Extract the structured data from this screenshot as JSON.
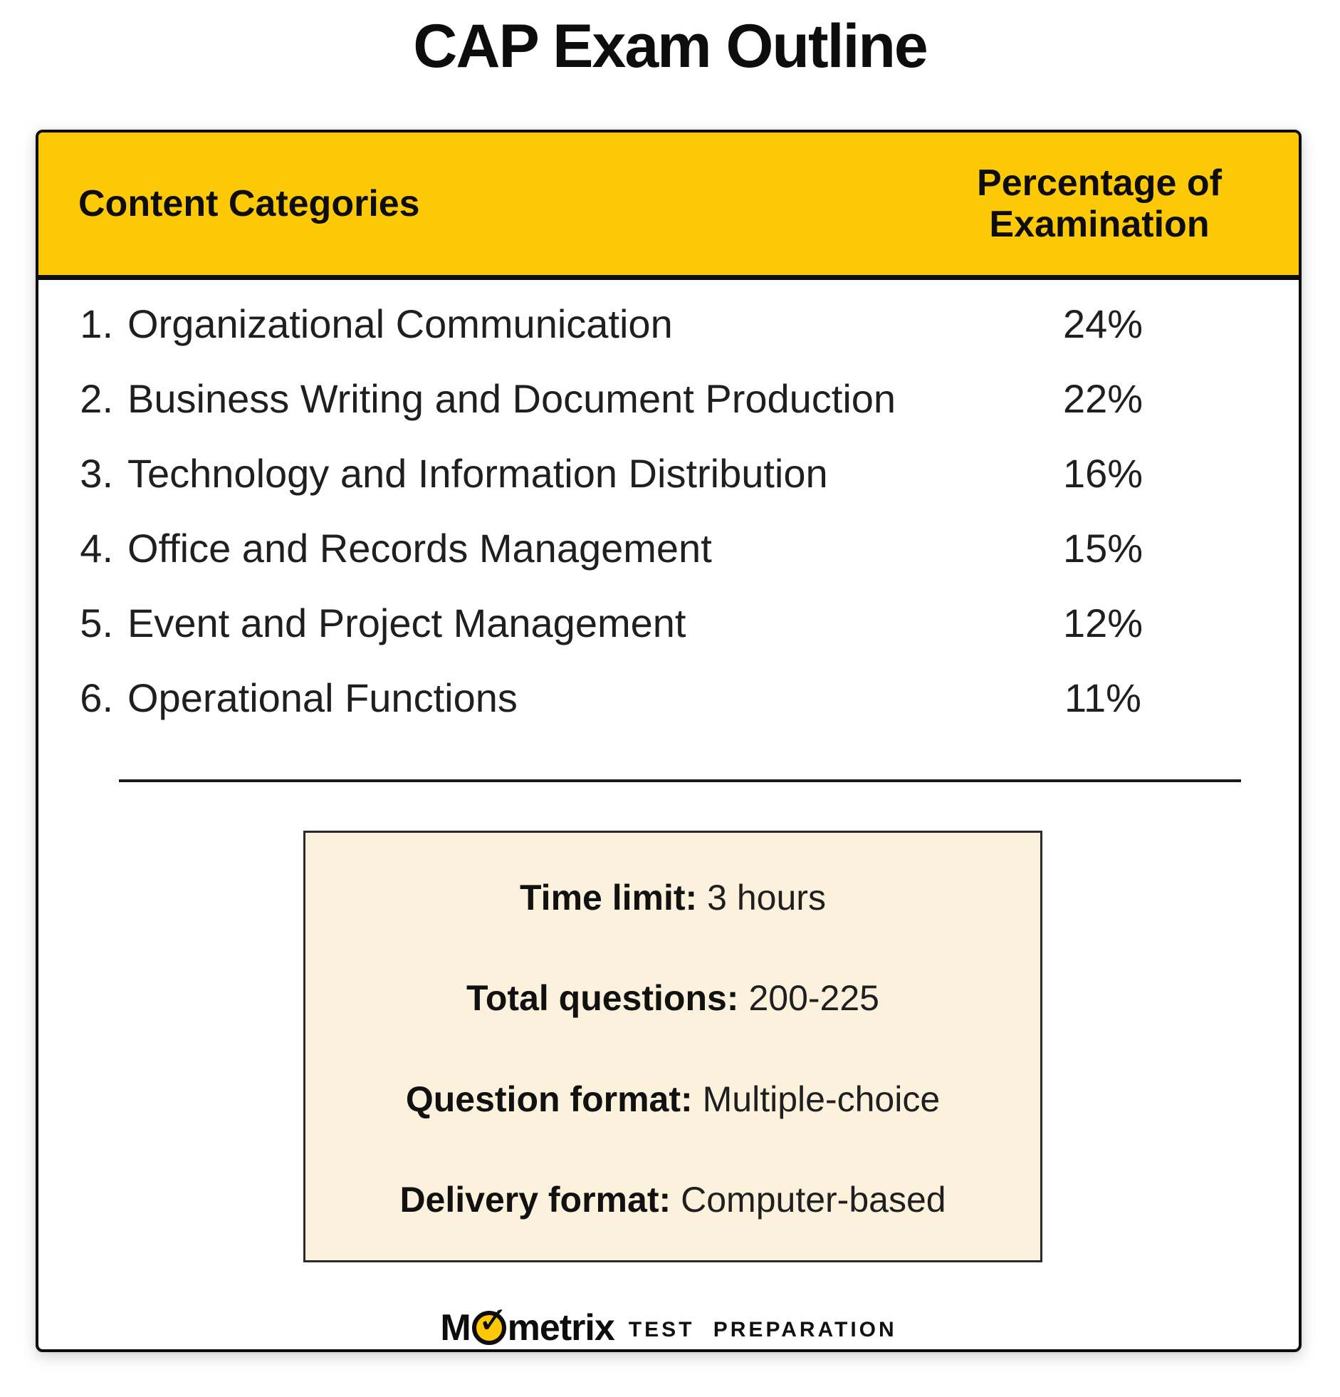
{
  "title": "CAP Exam Outline",
  "colors": {
    "header_yellow": "#FDC906",
    "info_cream": "#FCF1DC",
    "border_black": "#0d0d0d"
  },
  "table": {
    "header": {
      "categories": "Content Categories",
      "percentage": "Percentage of Examination"
    },
    "rows": [
      {
        "number": "1.",
        "label": "Organizational Communication",
        "percent": "24%"
      },
      {
        "number": "2.",
        "label": "Business Writing and Document Production",
        "percent": "22%"
      },
      {
        "number": "3.",
        "label": "Technology and Information Distribution",
        "percent": "16%"
      },
      {
        "number": "4.",
        "label": "Office and Records Management",
        "percent": "15%"
      },
      {
        "number": "5.",
        "label": "Event and Project Management",
        "percent": "12%"
      },
      {
        "number": "6.",
        "label": "Operational Functions",
        "percent": "11%"
      }
    ]
  },
  "info_box": {
    "lines": [
      {
        "label": "Time limit:",
        "value": "3 hours"
      },
      {
        "label": "Total questions:",
        "value": "200-225"
      },
      {
        "label": "Question format:",
        "value": "Multiple-choice"
      },
      {
        "label": "Delivery format:",
        "value": "Computer-based"
      }
    ]
  },
  "footer": {
    "brand_prefix": "M",
    "brand_suffix": "metrix",
    "check_icon": "✓",
    "tagline": "TEST  PREPARATION"
  }
}
